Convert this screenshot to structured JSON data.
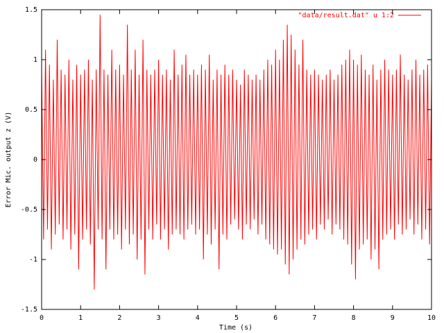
{
  "chart_data": {
    "type": "line",
    "xlabel": "Time (s)",
    "ylabel": "Error Mic. output z (V)",
    "xlim": [
      0,
      10
    ],
    "xticks": [
      0,
      1,
      2,
      3,
      4,
      5,
      6,
      7,
      8,
      9,
      10
    ],
    "ylim": [
      -1.5,
      1.5
    ],
    "yticks": [
      -1.5,
      -1,
      -0.5,
      0,
      0.5,
      1,
      1.5
    ],
    "legend": "top-right",
    "x": [
      0,
      0.05,
      0.1,
      0.15,
      0.2,
      0.25,
      0.3,
      0.35,
      0.4,
      0.45,
      0.5,
      0.55,
      0.6,
      0.65,
      0.7,
      0.75,
      0.8,
      0.85,
      0.9,
      0.95,
      1,
      1.05,
      1.1,
      1.15,
      1.2,
      1.25,
      1.3,
      1.35,
      1.4,
      1.45,
      1.5,
      1.55,
      1.6,
      1.65,
      1.7,
      1.75,
      1.8,
      1.85,
      1.9,
      1.95,
      2,
      2.05,
      2.1,
      2.15,
      2.2,
      2.25,
      2.3,
      2.35,
      2.4,
      2.45,
      2.5,
      2.55,
      2.6,
      2.65,
      2.7,
      2.75,
      2.8,
      2.85,
      2.9,
      2.95,
      3,
      3.05,
      3.1,
      3.15,
      3.2,
      3.25,
      3.3,
      3.35,
      3.4,
      3.45,
      3.5,
      3.55,
      3.6,
      3.65,
      3.7,
      3.75,
      3.8,
      3.85,
      3.9,
      3.95,
      4,
      4.05,
      4.1,
      4.15,
      4.2,
      4.25,
      4.3,
      4.35,
      4.4,
      4.45,
      4.5,
      4.55,
      4.6,
      4.65,
      4.7,
      4.75,
      4.8,
      4.85,
      4.9,
      4.95,
      5,
      5.05,
      5.1,
      5.15,
      5.2,
      5.25,
      5.3,
      5.35,
      5.4,
      5.45,
      5.5,
      5.55,
      5.6,
      5.65,
      5.7,
      5.75,
      5.8,
      5.85,
      5.9,
      5.95,
      6,
      6.05,
      6.1,
      6.15,
      6.2,
      6.25,
      6.3,
      6.35,
      6.4,
      6.45,
      6.5,
      6.55,
      6.6,
      6.65,
      6.7,
      6.75,
      6.8,
      6.85,
      6.9,
      6.95,
      7,
      7.05,
      7.1,
      7.15,
      7.2,
      7.25,
      7.3,
      7.35,
      7.4,
      7.45,
      7.5,
      7.55,
      7.6,
      7.65,
      7.7,
      7.75,
      7.8,
      7.85,
      7.9,
      7.95,
      8,
      8.05,
      8.1,
      8.15,
      8.2,
      8.25,
      8.3,
      8.35,
      8.4,
      8.45,
      8.5,
      8.55,
      8.6,
      8.65,
      8.7,
      8.75,
      8.8,
      8.85,
      8.9,
      8.95,
      9,
      9.05,
      9.1,
      9.15,
      9.2,
      9.25,
      9.3,
      9.35,
      9.4,
      9.45,
      9.5,
      9.55,
      9.6,
      9.65,
      9.7,
      9.75,
      9.8,
      9.85,
      9.9,
      9.95,
      10
    ],
    "series": [
      {
        "name": "\"data/result.dat\" u 1:2",
        "color": "#ff0000",
        "values": [
          0.9,
          -0.8,
          1.1,
          -0.7,
          0.95,
          -0.9,
          0.8,
          -0.75,
          1.2,
          -0.65,
          0.9,
          -0.8,
          0.85,
          -0.7,
          1.0,
          -0.9,
          0.8,
          -0.75,
          0.95,
          -1.1,
          0.85,
          -0.8,
          0.9,
          -0.7,
          1.0,
          -0.85,
          0.8,
          -1.3,
          0.9,
          -0.7,
          1.45,
          -0.8,
          0.9,
          -1.1,
          0.85,
          -0.7,
          1.1,
          -0.8,
          0.9,
          -0.75,
          0.95,
          -0.9,
          0.85,
          -0.7,
          1.35,
          -0.85,
          0.9,
          -0.75,
          1.1,
          -1.0,
          0.85,
          -0.8,
          1.2,
          -1.15,
          0.9,
          -0.7,
          0.85,
          -0.8,
          0.9,
          -0.65,
          1.0,
          -0.8,
          0.85,
          -0.7,
          0.9,
          -0.9,
          0.8,
          -0.75,
          1.1,
          -0.7,
          0.85,
          -0.75,
          0.95,
          -0.8,
          1.05,
          -0.7,
          0.85,
          -0.65,
          0.9,
          -0.75,
          0.85,
          -0.7,
          0.95,
          -1.0,
          0.9,
          -0.75,
          1.05,
          -0.85,
          0.8,
          -0.7,
          0.9,
          -1.1,
          0.85,
          -0.75,
          0.95,
          -0.8,
          0.85,
          -0.65,
          0.9,
          -0.6,
          0.8,
          -0.7,
          0.75,
          -0.8,
          0.9,
          -0.65,
          0.85,
          -0.7,
          0.8,
          -0.6,
          0.85,
          -0.75,
          0.8,
          -0.65,
          0.9,
          -0.8,
          1.0,
          -0.85,
          0.95,
          -0.9,
          1.1,
          -0.95,
          1.0,
          -0.9,
          1.2,
          -1.05,
          1.35,
          -1.15,
          1.25,
          -1.0,
          1.1,
          -0.9,
          0.95,
          -0.8,
          1.2,
          -0.85,
          0.9,
          -0.75,
          0.85,
          -0.7,
          0.9,
          -0.8,
          0.85,
          -0.65,
          0.8,
          -0.7,
          0.85,
          -0.6,
          0.9,
          -0.75,
          0.8,
          -0.65,
          0.85,
          -0.7,
          0.95,
          -0.8,
          1.0,
          -0.85,
          1.1,
          -1.05,
          1.0,
          -1.2,
          0.95,
          -0.9,
          1.05,
          -0.85,
          0.9,
          -0.8,
          0.85,
          -1.0,
          0.95,
          -0.9,
          0.8,
          -1.1,
          0.9,
          -0.8,
          1.0,
          -0.75,
          0.9,
          -0.7,
          0.85,
          -0.8,
          0.9,
          -0.65,
          1.05,
          -0.75,
          0.85,
          -0.7,
          0.8,
          -0.6,
          0.9,
          -0.75,
          1.0,
          -0.65,
          0.85,
          -0.8,
          0.9,
          -0.7,
          0.95,
          -0.85,
          0.8
        ]
      }
    ]
  }
}
